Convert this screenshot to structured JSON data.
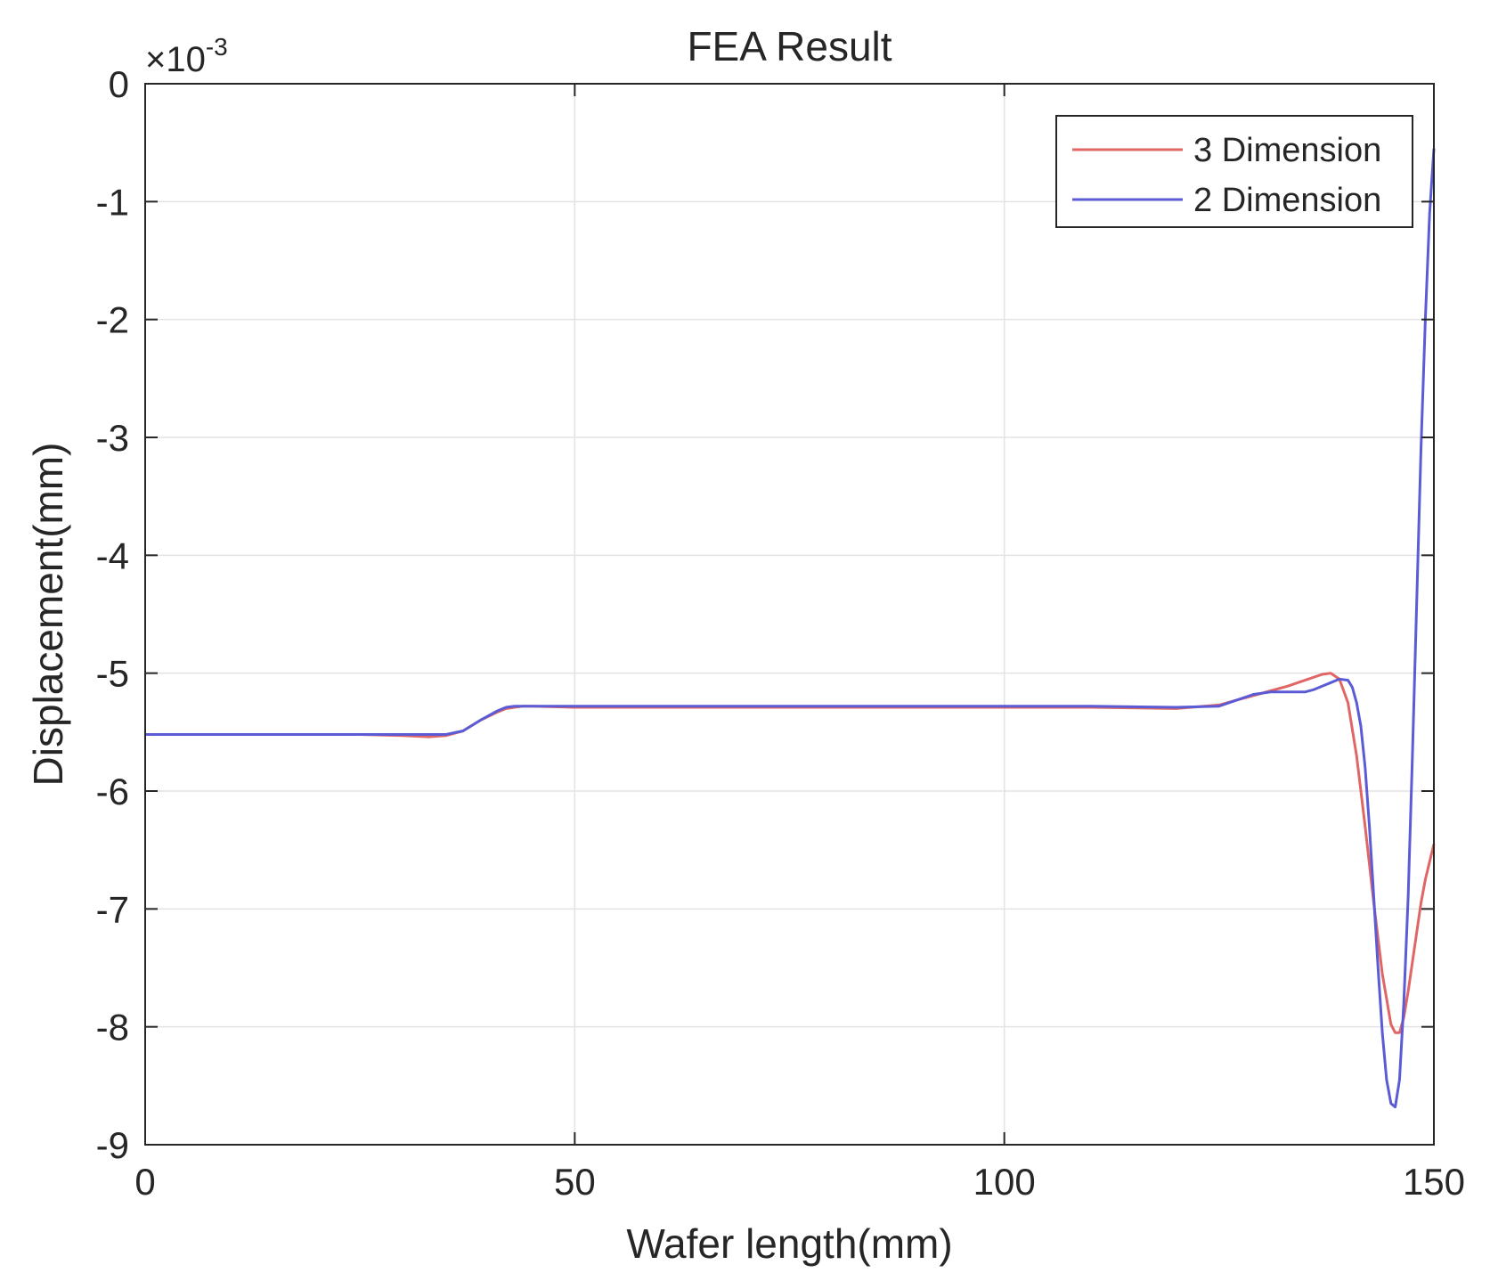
{
  "chart_data": {
    "type": "line",
    "title": "FEA Result",
    "xlabel": "Wafer length(mm)",
    "ylabel": "Displacement(mm)",
    "y_exponent_prefix": "×10",
    "y_exponent_power": "-3",
    "xlim": [
      0,
      150
    ],
    "ylim": [
      -9,
      0
    ],
    "x_ticks": [
      "0",
      "50",
      "100",
      "150"
    ],
    "y_ticks": [
      "0",
      "-1",
      "-2",
      "-3",
      "-4",
      "-5",
      "-6",
      "-7",
      "-8",
      "-9"
    ],
    "grid": true,
    "legend_position": "top-right",
    "series": [
      {
        "name": "3 Dimension",
        "color": "#e06666",
        "x": [
          0,
          5,
          10,
          15,
          20,
          25,
          30,
          33,
          35,
          37,
          39,
          41,
          42,
          43,
          44,
          45,
          50,
          60,
          70,
          80,
          90,
          100,
          110,
          120,
          125,
          127,
          129,
          131,
          133,
          135,
          137,
          138,
          139,
          140,
          141,
          142,
          143,
          144,
          145,
          145.5,
          146,
          146.5,
          147,
          147.5,
          148,
          148.5,
          149,
          149.5,
          150
        ],
        "y": [
          -5.52,
          -5.52,
          -5.52,
          -5.52,
          -5.52,
          -5.52,
          -5.53,
          -5.54,
          -5.53,
          -5.49,
          -5.4,
          -5.33,
          -5.3,
          -5.29,
          -5.28,
          -5.28,
          -5.29,
          -5.29,
          -5.29,
          -5.29,
          -5.29,
          -5.29,
          -5.29,
          -5.3,
          -5.27,
          -5.23,
          -5.19,
          -5.15,
          -5.11,
          -5.06,
          -5.01,
          -5.0,
          -5.05,
          -5.25,
          -5.7,
          -6.3,
          -6.95,
          -7.55,
          -7.98,
          -8.05,
          -8.05,
          -7.92,
          -7.7,
          -7.45,
          -7.2,
          -6.95,
          -6.75,
          -6.6,
          -6.45
        ]
      },
      {
        "name": "2 Dimension",
        "color": "#5b5bd6",
        "x": [
          0,
          5,
          10,
          15,
          20,
          25,
          30,
          33,
          35,
          37,
          39,
          41,
          42,
          43,
          44,
          45,
          50,
          60,
          70,
          80,
          90,
          100,
          110,
          120,
          125,
          127,
          129,
          131,
          133,
          135,
          136,
          137,
          138,
          139,
          140,
          140.5,
          141,
          141.5,
          142,
          142.5,
          143,
          143.5,
          144,
          144.5,
          145,
          145.5,
          146,
          146.5,
          147,
          147.5,
          148,
          148.5,
          149,
          149.5,
          150
        ],
        "y": [
          -5.52,
          -5.52,
          -5.52,
          -5.52,
          -5.52,
          -5.52,
          -5.52,
          -5.52,
          -5.52,
          -5.49,
          -5.4,
          -5.32,
          -5.29,
          -5.28,
          -5.28,
          -5.28,
          -5.28,
          -5.28,
          -5.28,
          -5.28,
          -5.28,
          -5.28,
          -5.28,
          -5.29,
          -5.28,
          -5.23,
          -5.18,
          -5.16,
          -5.16,
          -5.16,
          -5.14,
          -5.11,
          -5.08,
          -5.05,
          -5.06,
          -5.12,
          -5.25,
          -5.45,
          -5.8,
          -6.3,
          -6.9,
          -7.5,
          -8.05,
          -8.45,
          -8.65,
          -8.68,
          -8.45,
          -7.8,
          -6.9,
          -5.7,
          -4.4,
          -3.1,
          -2.0,
          -1.1,
          -0.55
        ]
      }
    ]
  }
}
